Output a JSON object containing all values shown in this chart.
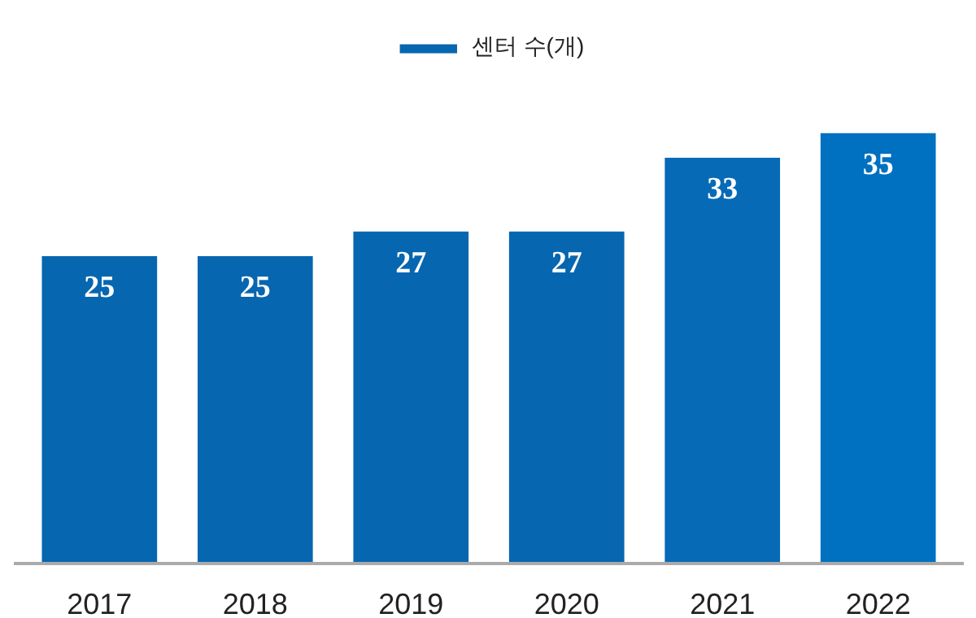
{
  "chart_data": {
    "type": "bar",
    "categories": [
      "2017",
      "2018",
      "2019",
      "2020",
      "2021",
      "2022"
    ],
    "series": [
      {
        "name": "센터 수(개)",
        "colors": [
          "#0766b0",
          "#0766b0",
          "#0766b0",
          "#0766b0",
          "#066ab7",
          "#0070c0"
        ],
        "values": [
          25,
          25,
          27,
          27,
          33,
          35
        ]
      }
    ],
    "data_labels": true,
    "legend": "top",
    "grid": false
  }
}
